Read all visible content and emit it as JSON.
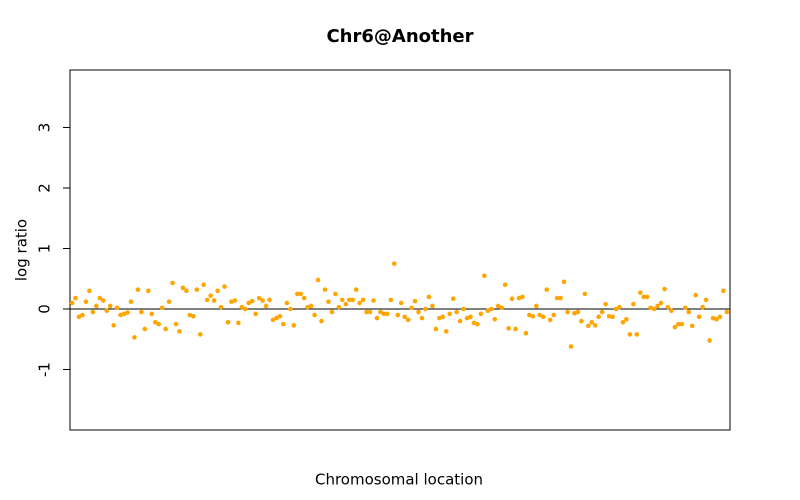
{
  "chart_data": {
    "type": "scatter",
    "title": "Chr6@Another",
    "x_label": "Chromosomal location",
    "y_label": "log ratio",
    "x": [
      1,
      2,
      3,
      4,
      5,
      6,
      7,
      8,
      9,
      10,
      11,
      12,
      13,
      14,
      15,
      16,
      17,
      18,
      19,
      20,
      21,
      22,
      23,
      24,
      25,
      26,
      27,
      28,
      29,
      30,
      31,
      32,
      33,
      34,
      35,
      36,
      37,
      38,
      39,
      40,
      41,
      42,
      43,
      44,
      45,
      46,
      47,
      48,
      49,
      50,
      51,
      52,
      53,
      54,
      55,
      56,
      57,
      58,
      59,
      60,
      61,
      62,
      63,
      64,
      65,
      66,
      67,
      68,
      69,
      70,
      71,
      72,
      73,
      74,
      75,
      76,
      77,
      78,
      79,
      80,
      81,
      82,
      83,
      84,
      85,
      86,
      87,
      88,
      89,
      90,
      91,
      92,
      93,
      94,
      95,
      96,
      97,
      98,
      99,
      100,
      101,
      102,
      103,
      104,
      105,
      106,
      107,
      108,
      109,
      110,
      111,
      112,
      113,
      114,
      115,
      116,
      117,
      118,
      119,
      120,
      121,
      122,
      123,
      124,
      125,
      126,
      127,
      128,
      129,
      130,
      131,
      132,
      133,
      134,
      135,
      136,
      137,
      138,
      139,
      140,
      141,
      142,
      143,
      144,
      145,
      146,
      147,
      148,
      149,
      150,
      151,
      152,
      153,
      154,
      155,
      156,
      157,
      158,
      159,
      160,
      161,
      162,
      163,
      164,
      165,
      166,
      167,
      168,
      169,
      170,
      171,
      172,
      173,
      174,
      175,
      176,
      177,
      178,
      179,
      180,
      181,
      182,
      183,
      184,
      185,
      186,
      187,
      188,
      189,
      190
    ],
    "values": [
      0.1,
      0.18,
      -0.13,
      -0.1,
      0.12,
      0.3,
      -0.05,
      0.05,
      0.18,
      0.14,
      -0.03,
      0.05,
      -0.27,
      0.02,
      -0.1,
      -0.08,
      -0.06,
      0.12,
      -0.47,
      0.32,
      -0.05,
      -0.33,
      0.3,
      -0.08,
      -0.22,
      -0.25,
      0.02,
      -0.33,
      0.12,
      0.43,
      -0.25,
      -0.37,
      0.35,
      0.3,
      -0.1,
      -0.12,
      0.32,
      -0.42,
      0.4,
      0.15,
      0.22,
      0.14,
      0.3,
      0.03,
      0.37,
      -0.22,
      0.12,
      0.14,
      -0.23,
      0.03,
      0.0,
      0.1,
      0.13,
      -0.08,
      0.18,
      0.14,
      0.05,
      0.15,
      -0.18,
      -0.15,
      -0.12,
      -0.25,
      0.1,
      0.0,
      -0.27,
      0.25,
      0.25,
      0.18,
      0.03,
      0.05,
      -0.1,
      0.48,
      -0.2,
      0.32,
      0.12,
      -0.05,
      0.25,
      0.03,
      0.15,
      0.08,
      0.15,
      0.15,
      0.32,
      0.1,
      0.15,
      -0.05,
      -0.05,
      0.14,
      -0.15,
      -0.05,
      -0.08,
      -0.08,
      0.15,
      0.75,
      -0.1,
      0.1,
      -0.13,
      -0.18,
      0.02,
      0.13,
      -0.05,
      -0.15,
      0.0,
      0.2,
      0.05,
      -0.33,
      -0.15,
      -0.13,
      -0.37,
      -0.08,
      0.17,
      -0.05,
      -0.2,
      0.0,
      -0.15,
      -0.13,
      -0.23,
      -0.25,
      -0.08,
      0.55,
      -0.03,
      0.0,
      -0.17,
      0.05,
      0.02,
      0.4,
      -0.32,
      0.17,
      -0.33,
      0.18,
      0.2,
      -0.4,
      -0.1,
      -0.12,
      0.05,
      -0.1,
      -0.13,
      0.32,
      -0.18,
      -0.1,
      0.18,
      0.18,
      0.45,
      -0.05,
      -0.62,
      -0.07,
      -0.05,
      -0.2,
      0.25,
      -0.28,
      -0.22,
      -0.27,
      -0.13,
      -0.05,
      0.08,
      -0.12,
      -0.13,
      0.0,
      0.03,
      -0.22,
      -0.17,
      -0.42,
      0.08,
      -0.42,
      0.27,
      0.2,
      0.2,
      0.02,
      0.0,
      0.05,
      0.1,
      0.33,
      0.03,
      -0.03,
      -0.3,
      -0.25,
      -0.25,
      0.02,
      -0.05,
      -0.28,
      0.23,
      -0.13,
      0.03,
      0.15,
      -0.52,
      -0.15,
      -0.17,
      -0.13,
      0.3,
      -0.05
    ],
    "color": "#ffa500",
    "xlim": [
      0.4,
      190.9
    ],
    "ylim": [
      -2,
      3.95
    ],
    "yticks": [
      -1,
      0,
      1,
      2,
      3
    ],
    "hline": 0
  }
}
